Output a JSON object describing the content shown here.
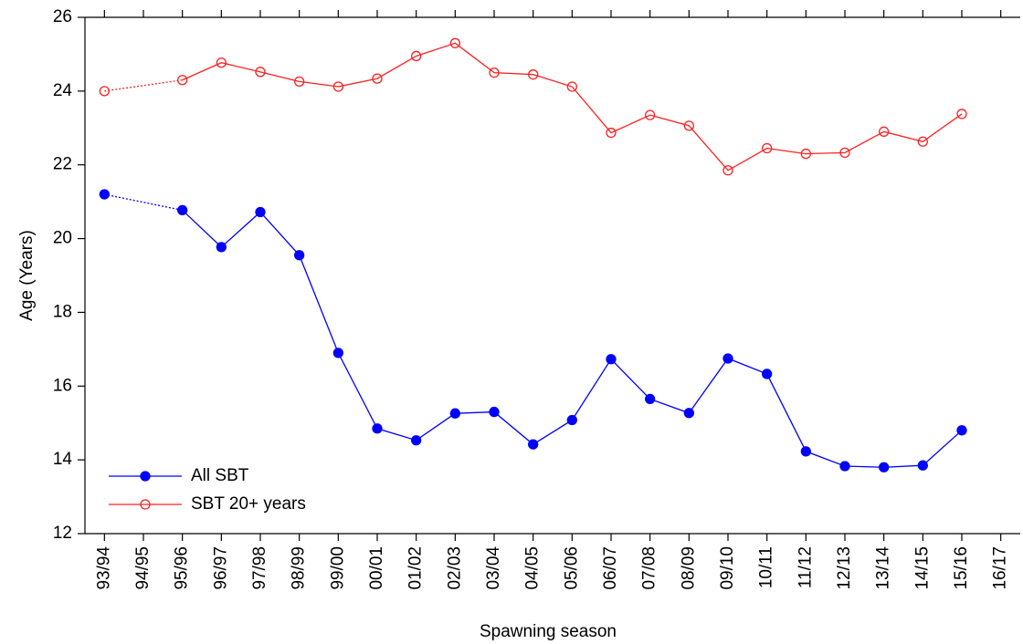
{
  "chart_data": {
    "type": "line",
    "x_label": "Spawning season",
    "y_label": "Age (Years)",
    "categories": [
      "93/94",
      "94/95",
      "95/96",
      "96/97",
      "97/98",
      "98/99",
      "99/00",
      "00/01",
      "01/02",
      "02/03",
      "03/04",
      "04/05",
      "05/06",
      "06/07",
      "07/08",
      "08/09",
      "09/10",
      "10/11",
      "11/12",
      "12/13",
      "13/14",
      "14/15",
      "15/16",
      "16/17"
    ],
    "series": [
      {
        "name": "All SBT",
        "color": "#0000ff",
        "marker": "filled",
        "values": [
          21.2,
          null,
          20.77,
          19.77,
          20.72,
          19.55,
          16.9,
          14.85,
          14.53,
          15.26,
          15.3,
          14.42,
          15.08,
          16.73,
          15.65,
          15.27,
          16.75,
          16.33,
          14.23,
          13.83,
          13.8,
          13.85,
          14.8,
          null
        ]
      },
      {
        "name": "SBT 20+ years",
        "color": "#ff2020",
        "marker": "open",
        "values": [
          24.0,
          null,
          24.3,
          24.77,
          24.52,
          24.26,
          24.12,
          24.34,
          24.95,
          25.3,
          24.5,
          24.45,
          24.12,
          22.87,
          23.35,
          23.06,
          21.85,
          22.45,
          22.3,
          22.33,
          22.9,
          22.63,
          23.38,
          null
        ]
      }
    ],
    "ylim": [
      12,
      26
    ],
    "yticks": [
      12,
      14,
      16,
      18,
      20,
      22,
      24,
      26
    ],
    "legend": "lower left"
  }
}
